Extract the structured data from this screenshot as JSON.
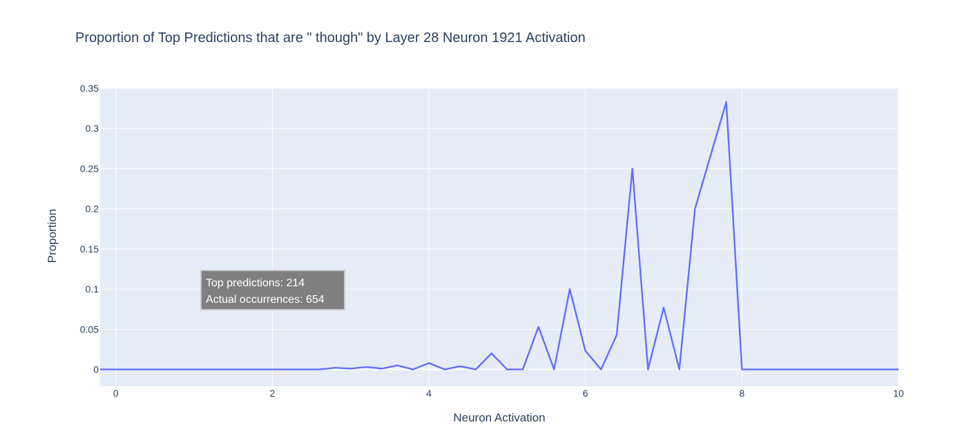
{
  "chart_data": {
    "type": "line",
    "title": "Proportion of Top Predictions that are \" though\" by Layer 28 Neuron 1921 Activation",
    "xlabel": "Neuron Activation",
    "ylabel": "Proportion",
    "xlim": [
      -0.2,
      10
    ],
    "ylim": [
      -0.021,
      0.35
    ],
    "x_ticks": [
      0,
      2,
      4,
      6,
      8,
      10
    ],
    "x_tick_labels": [
      "0",
      "2",
      "4",
      "6",
      "8",
      "10"
    ],
    "y_ticks": [
      0,
      0.05,
      0.1,
      0.15,
      0.2,
      0.25,
      0.3,
      0.35
    ],
    "y_tick_labels": [
      "0",
      "0.05",
      "0.1",
      "0.15",
      "0.2",
      "0.25",
      "0.3",
      "0.35"
    ],
    "grid": true,
    "colors": {
      "plot_bg": "#e5ecf6",
      "grid": "#ffffff",
      "line": "#636efa",
      "text": "#2a3f5f",
      "annotation_bg": "#7f7f7f",
      "annotation_border": "#c8c8c8"
    },
    "series": [
      {
        "x": [
          -0.2,
          0,
          0.2,
          0.4,
          0.6,
          0.8,
          1.0,
          1.2,
          1.4,
          1.6,
          1.8,
          2.0,
          2.2,
          2.4,
          2.6,
          2.8,
          3.0,
          3.2,
          3.4,
          3.6,
          3.8,
          4.0,
          4.2,
          4.4,
          4.6,
          4.8,
          5.0,
          5.2,
          5.4,
          5.6,
          5.8,
          6.0,
          6.2,
          6.4,
          6.6,
          6.8,
          7.0,
          7.2,
          7.4,
          7.8,
          8.0,
          8.2,
          8.4,
          8.6,
          8.8,
          9.0,
          9.2,
          9.4,
          9.6,
          9.8,
          10.0
        ],
        "y": [
          0,
          0,
          0,
          0,
          0,
          0,
          0,
          0,
          0,
          0,
          0,
          0,
          0,
          0,
          0,
          0.002,
          0.001,
          0.003,
          0.001,
          0.005,
          0,
          0.008,
          0,
          0.004,
          0,
          0.02,
          0,
          0,
          0.053,
          0,
          0.1,
          0.023,
          0,
          0.043,
          0.25,
          0,
          0.077,
          0,
          0.2,
          0.333,
          0,
          0,
          0,
          0,
          0,
          0,
          0,
          0,
          0,
          0,
          0
        ]
      }
    ],
    "annotation": {
      "line1": "Top predictions: 214",
      "line2": "Actual occurrences: 654"
    }
  }
}
